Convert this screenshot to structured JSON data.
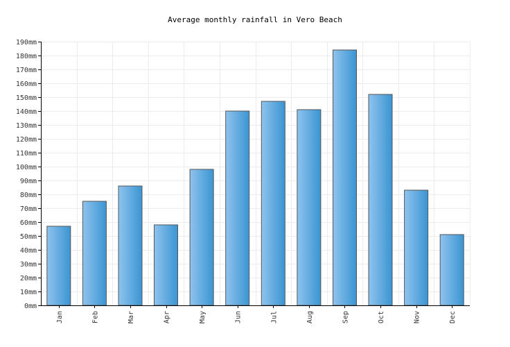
{
  "chart_data": {
    "type": "bar",
    "title": "Average monthly rainfall in Vero Beach",
    "categories": [
      "Jan",
      "Feb",
      "Mar",
      "Apr",
      "May",
      "Jun",
      "Jul",
      "Aug",
      "Sep",
      "Oct",
      "Nov",
      "Dec"
    ],
    "values": [
      57,
      75,
      86,
      58,
      98,
      140,
      147,
      141,
      184,
      152,
      83,
      51
    ],
    "y_ticks": [
      "0mm",
      "10mm",
      "20mm",
      "30mm",
      "40mm",
      "50mm",
      "60mm",
      "70mm",
      "80mm",
      "90mm",
      "100mm",
      "110mm",
      "120mm",
      "130mm",
      "140mm",
      "150mm",
      "160mm",
      "170mm",
      "180mm",
      "190mm"
    ],
    "ylim": [
      0,
      190
    ],
    "unit": "mm",
    "grid": true,
    "colors": {
      "bar_light": "#8fc3ee",
      "bar_dark": "#3a95d2",
      "bar_border": "#555555",
      "grid": "#ececec",
      "axis": "#000000"
    }
  }
}
